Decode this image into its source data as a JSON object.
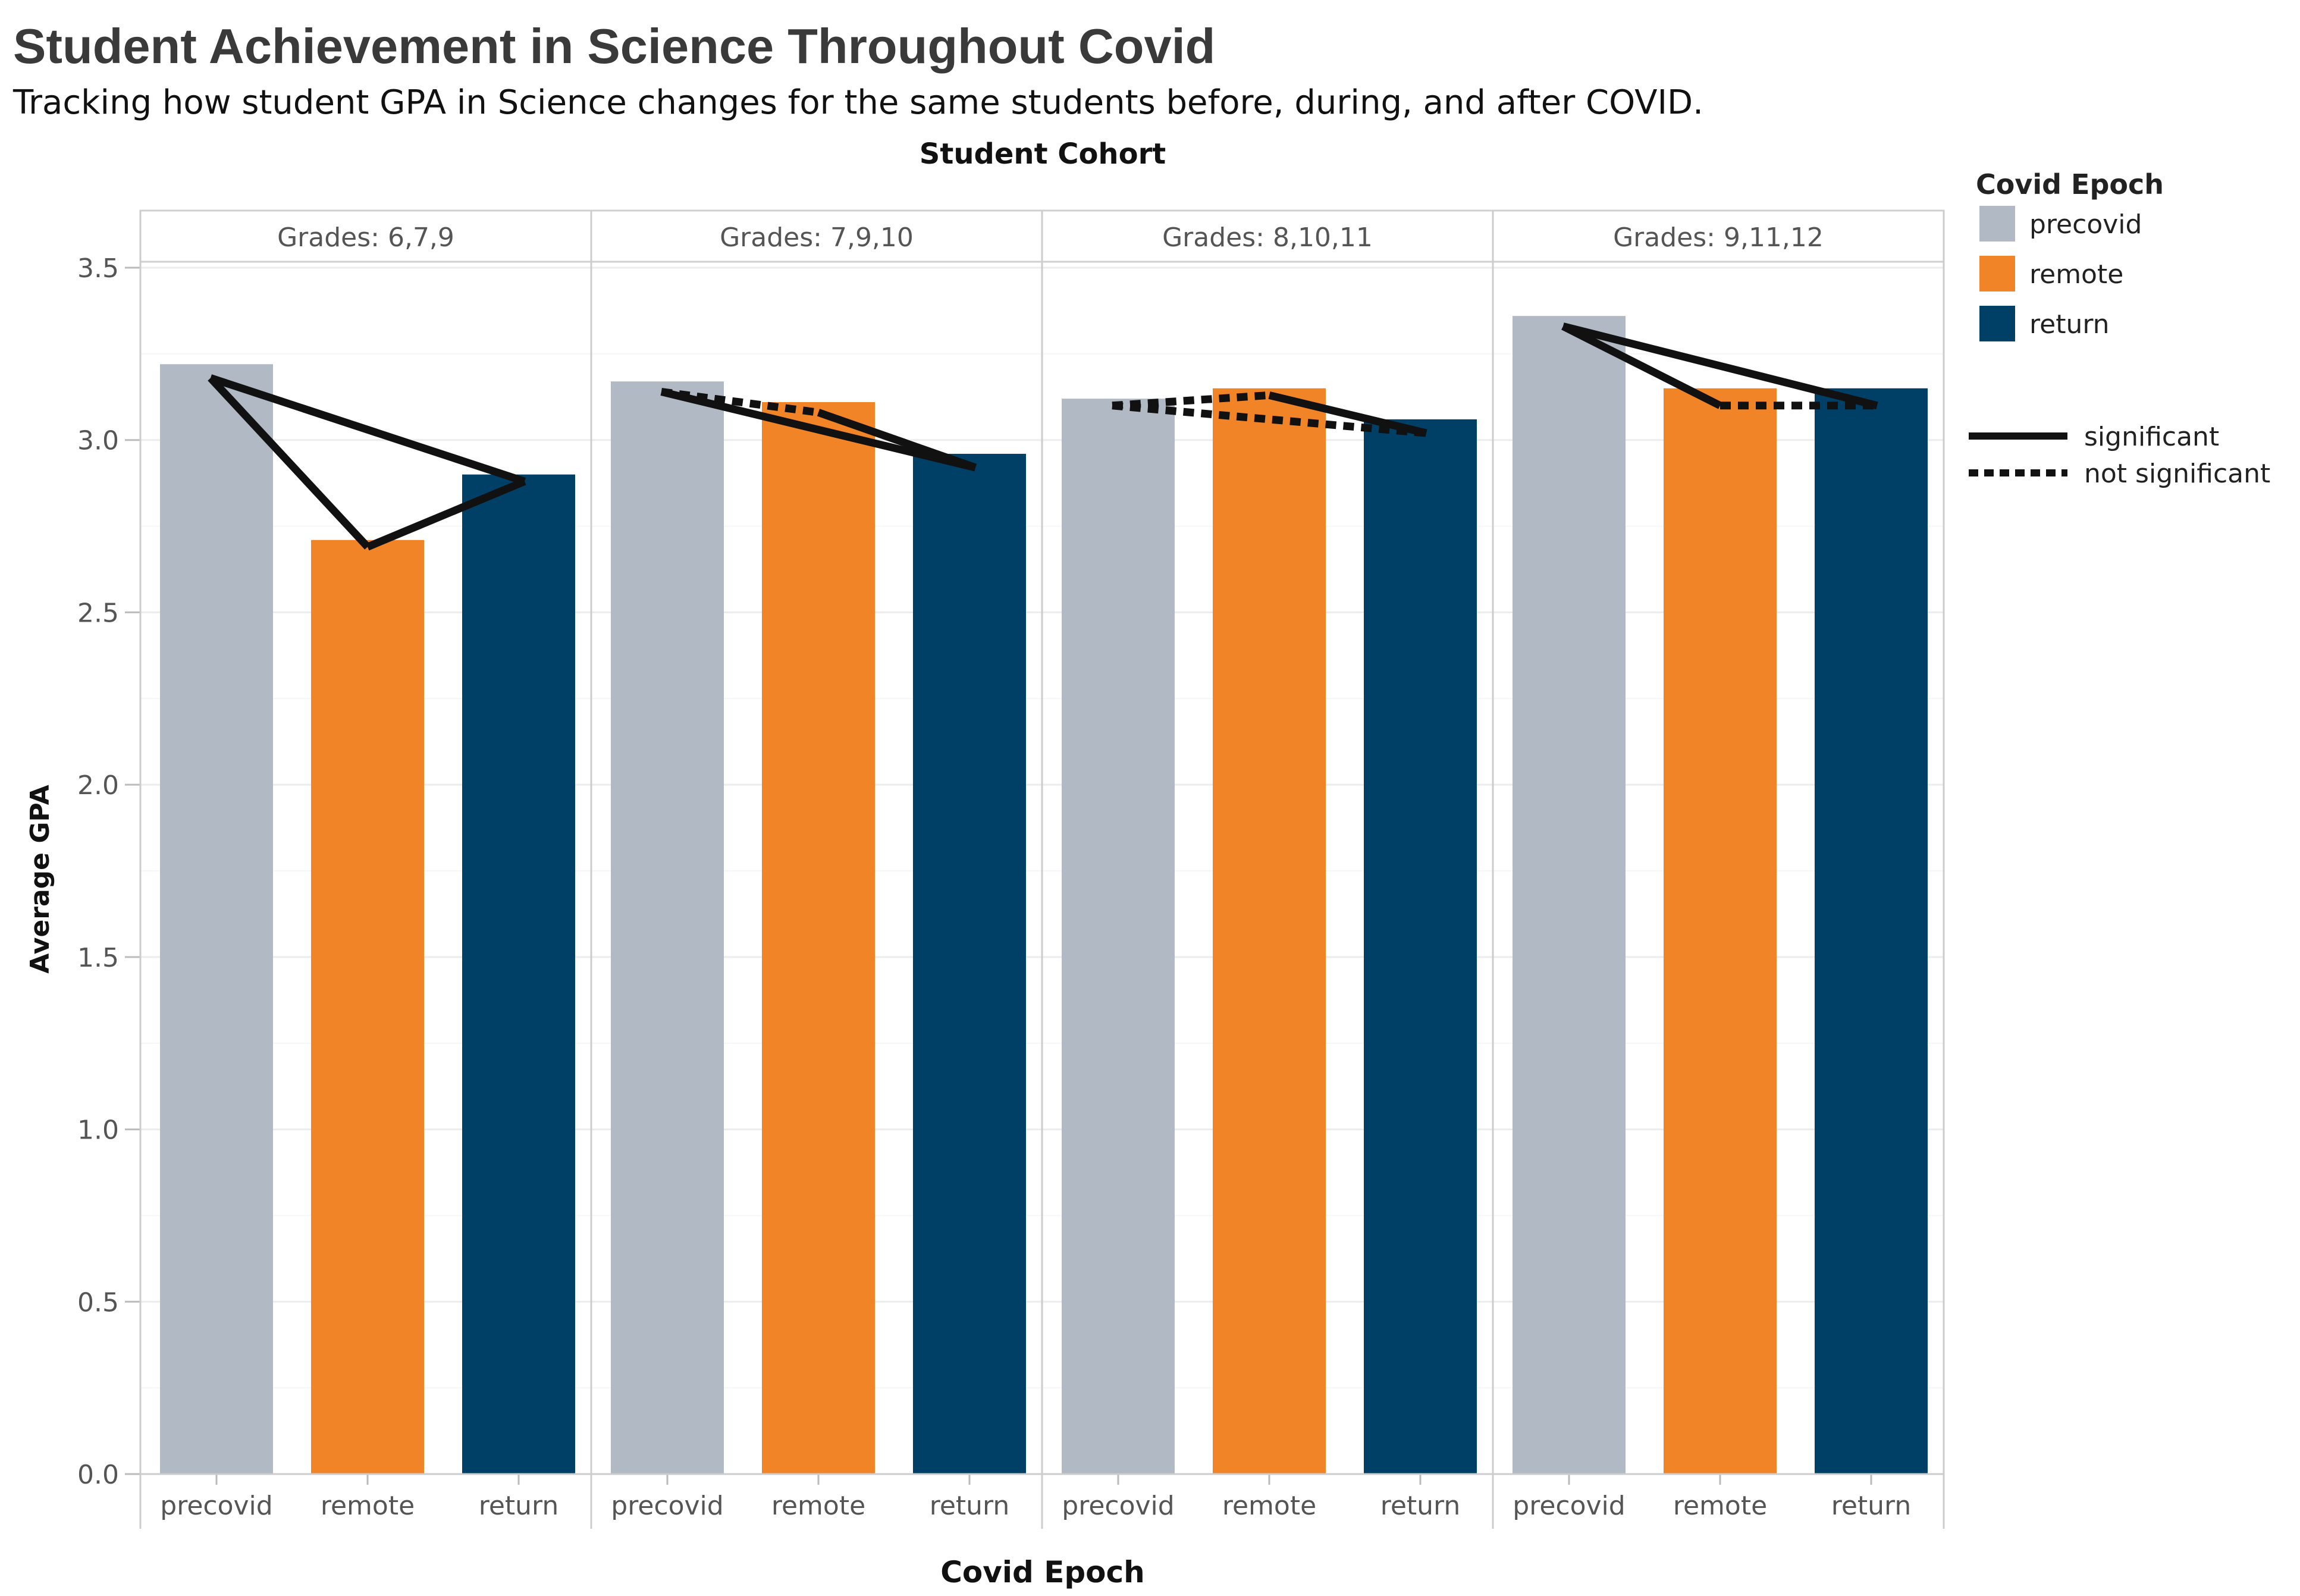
{
  "chart_data": {
    "type": "bar",
    "title": "Student Achievement in Science Throughout Covid",
    "subtitle": "Tracking how student GPA in Science changes for the same students before, during, and after COVID.",
    "facet_label": "Student Cohort",
    "xlabel": "Covid Epoch",
    "ylabel": "Average GPA",
    "ylim": [
      0,
      3.55
    ],
    "yticks": [
      "0.0",
      "0.5",
      "1.0",
      "1.5",
      "2.0",
      "2.5",
      "3.0",
      "3.5"
    ],
    "categories": [
      "precovid",
      "remote",
      "return"
    ],
    "colors": {
      "precovid": "#b1bac4",
      "remote": "#f28428",
      "return": "#003f66"
    },
    "panels": [
      {
        "label": "Grades: 6,7,9",
        "values": [
          3.22,
          2.71,
          2.9
        ],
        "lines": [
          {
            "from": "precovid",
            "to": "remote",
            "y": [
              3.18,
              2.69
            ],
            "type": "significant"
          },
          {
            "from": "remote",
            "to": "return",
            "y": [
              2.69,
              2.88
            ],
            "type": "significant"
          },
          {
            "from": "precovid",
            "to": "return",
            "y": [
              3.18,
              2.88
            ],
            "type": "significant"
          }
        ]
      },
      {
        "label": "Grades: 7,9,10",
        "values": [
          3.17,
          3.11,
          2.96
        ],
        "lines": [
          {
            "from": "precovid",
            "to": "remote",
            "y": [
              3.14,
              3.08
            ],
            "type": "not significant"
          },
          {
            "from": "remote",
            "to": "return",
            "y": [
              3.08,
              2.92
            ],
            "type": "significant"
          },
          {
            "from": "precovid",
            "to": "return",
            "y": [
              3.14,
              2.92
            ],
            "type": "significant"
          }
        ]
      },
      {
        "label": "Grades: 8,10,11",
        "values": [
          3.12,
          3.15,
          3.06
        ],
        "lines": [
          {
            "from": "precovid",
            "to": "remote",
            "y": [
              3.1,
              3.13
            ],
            "type": "not significant"
          },
          {
            "from": "remote",
            "to": "return",
            "y": [
              3.13,
              3.02
            ],
            "type": "significant"
          },
          {
            "from": "precovid",
            "to": "return",
            "y": [
              3.1,
              3.02
            ],
            "type": "not significant"
          }
        ]
      },
      {
        "label": "Grades: 9,11,12",
        "values": [
          3.36,
          3.15,
          3.15
        ],
        "lines": [
          {
            "from": "precovid",
            "to": "remote",
            "y": [
              3.33,
              3.1
            ],
            "type": "significant"
          },
          {
            "from": "remote",
            "to": "return",
            "y": [
              3.1,
              3.1
            ],
            "type": "not significant"
          },
          {
            "from": "precovid",
            "to": "return",
            "y": [
              3.33,
              3.1
            ],
            "type": "significant"
          }
        ]
      }
    ],
    "legend": {
      "fill_title": "Covid Epoch",
      "fill_items": [
        "precovid",
        "remote",
        "return"
      ],
      "line_items": [
        "significant",
        "not significant"
      ],
      "position": "right"
    },
    "grid": true
  }
}
